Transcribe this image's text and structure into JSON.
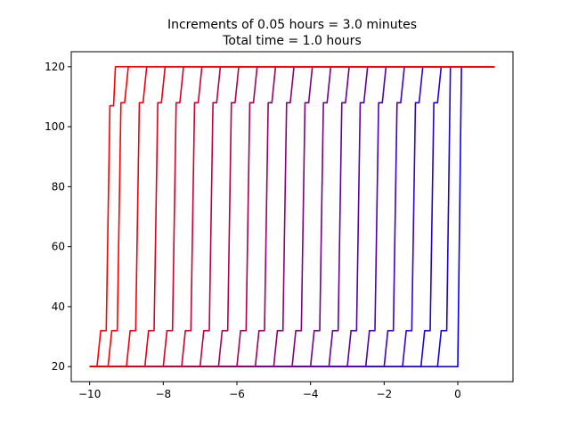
{
  "chart_data": {
    "type": "line",
    "title_lines": [
      "Increments of 0.05 hours = 3.0 minutes",
      "Total time = 1.0 hours"
    ],
    "xlabel": "",
    "ylabel": "",
    "xlim": [
      -10.5,
      1.5
    ],
    "ylim": [
      15,
      125
    ],
    "xticks": [
      {
        "value": -10,
        "label": "−10"
      },
      {
        "value": -8,
        "label": "−8"
      },
      {
        "value": -6,
        "label": "−6"
      },
      {
        "value": -4,
        "label": "−4"
      },
      {
        "value": -2,
        "label": "−2"
      },
      {
        "value": 0,
        "label": "0"
      }
    ],
    "yticks": [
      {
        "value": 20,
        "label": "20"
      },
      {
        "value": 40,
        "label": "40"
      },
      {
        "value": 60,
        "label": "60"
      },
      {
        "value": 80,
        "label": "80"
      },
      {
        "value": 100,
        "label": "100"
      },
      {
        "value": 120,
        "label": "120"
      }
    ],
    "grid": false,
    "colors": {
      "start": "#0000ff",
      "end": "#ff0000"
    },
    "series": [
      {
        "color": "#0d00f2",
        "x": [
          -10.0,
          0.0,
          0.1,
          1.0
        ],
        "y": [
          20,
          20,
          120,
          120
        ]
      },
      {
        "color": "#1a00e5",
        "x": [
          -10.0,
          -0.55,
          -0.45,
          -0.3,
          -0.2,
          0.0,
          1.0
        ],
        "y": [
          20,
          20,
          32,
          32,
          120,
          120,
          120
        ]
      },
      {
        "color": "#2600d9",
        "x": [
          -10.0,
          -1.0,
          -0.9,
          -0.75,
          -0.65,
          -0.55,
          -0.45,
          1.0
        ],
        "y": [
          20,
          20,
          32,
          32,
          108,
          108,
          120,
          120
        ]
      },
      {
        "color": "#3300cc",
        "x": [
          -10.0,
          -1.5,
          -1.4,
          -1.25,
          -1.15,
          -1.05,
          -0.95,
          1.0
        ],
        "y": [
          20,
          20,
          32,
          32,
          108,
          108,
          120,
          120
        ]
      },
      {
        "color": "#4000bf",
        "x": [
          -10.0,
          -2.0,
          -1.9,
          -1.75,
          -1.65,
          -1.55,
          -1.45,
          1.0
        ],
        "y": [
          20,
          20,
          32,
          32,
          108,
          108,
          120,
          120
        ]
      },
      {
        "color": "#4d00b2",
        "x": [
          -10.0,
          -2.5,
          -2.4,
          -2.25,
          -2.15,
          -2.05,
          -1.95,
          1.0
        ],
        "y": [
          20,
          20,
          32,
          32,
          108,
          108,
          120,
          120
        ]
      },
      {
        "color": "#5900a6",
        "x": [
          -10.0,
          -3.0,
          -2.9,
          -2.75,
          -2.65,
          -2.55,
          -2.45,
          1.0
        ],
        "y": [
          20,
          20,
          32,
          32,
          108,
          108,
          120,
          120
        ]
      },
      {
        "color": "#660099",
        "x": [
          -10.0,
          -3.5,
          -3.4,
          -3.25,
          -3.15,
          -3.05,
          -2.95,
          1.0
        ],
        "y": [
          20,
          20,
          32,
          32,
          108,
          108,
          120,
          120
        ]
      },
      {
        "color": "#73008c",
        "x": [
          -10.0,
          -4.0,
          -3.9,
          -3.75,
          -3.65,
          -3.55,
          -3.45,
          1.0
        ],
        "y": [
          20,
          20,
          32,
          32,
          108,
          108,
          120,
          120
        ]
      },
      {
        "color": "#800080",
        "x": [
          -10.0,
          -4.5,
          -4.4,
          -4.25,
          -4.15,
          -4.05,
          -3.95,
          1.0
        ],
        "y": [
          20,
          20,
          32,
          32,
          108,
          108,
          120,
          120
        ]
      },
      {
        "color": "#8c0073",
        "x": [
          -10.0,
          -5.0,
          -4.9,
          -4.75,
          -4.65,
          -4.55,
          -4.45,
          1.0
        ],
        "y": [
          20,
          20,
          32,
          32,
          108,
          108,
          120,
          120
        ]
      },
      {
        "color": "#990066",
        "x": [
          -10.0,
          -5.5,
          -5.4,
          -5.25,
          -5.15,
          -5.05,
          -4.95,
          1.0
        ],
        "y": [
          20,
          20,
          32,
          32,
          108,
          108,
          120,
          120
        ]
      },
      {
        "color": "#a60059",
        "x": [
          -10.0,
          -6.0,
          -5.9,
          -5.75,
          -5.65,
          -5.55,
          -5.45,
          1.0
        ],
        "y": [
          20,
          20,
          32,
          32,
          108,
          108,
          120,
          120
        ]
      },
      {
        "color": "#b2004d",
        "x": [
          -10.0,
          -6.5,
          -6.4,
          -6.25,
          -6.15,
          -6.05,
          -5.95,
          1.0
        ],
        "y": [
          20,
          20,
          32,
          32,
          108,
          108,
          120,
          120
        ]
      },
      {
        "color": "#bf0040",
        "x": [
          -10.0,
          -7.0,
          -6.9,
          -6.75,
          -6.65,
          -6.55,
          -6.45,
          1.0
        ],
        "y": [
          20,
          20,
          32,
          32,
          108,
          108,
          120,
          120
        ]
      },
      {
        "color": "#cc0033",
        "x": [
          -10.0,
          -7.5,
          -7.4,
          -7.25,
          -7.15,
          -7.05,
          -6.95,
          1.0
        ],
        "y": [
          20,
          20,
          32,
          32,
          108,
          108,
          120,
          120
        ]
      },
      {
        "color": "#d90026",
        "x": [
          -10.0,
          -8.0,
          -7.9,
          -7.75,
          -7.65,
          -7.55,
          -7.45,
          1.0
        ],
        "y": [
          20,
          20,
          32,
          32,
          108,
          108,
          120,
          120
        ]
      },
      {
        "color": "#e5001a",
        "x": [
          -10.0,
          -8.5,
          -8.4,
          -8.25,
          -8.15,
          -8.05,
          -7.95,
          1.0
        ],
        "y": [
          20,
          20,
          32,
          32,
          108,
          108,
          120,
          120
        ]
      },
      {
        "color": "#f2000d",
        "x": [
          -10.0,
          -9.0,
          -8.9,
          -8.75,
          -8.65,
          -8.55,
          -8.45,
          1.0
        ],
        "y": [
          20,
          20,
          32,
          32,
          108,
          108,
          120,
          120
        ]
      },
      {
        "color": "#ff0000",
        "x": [
          -10.0,
          -9.5,
          -9.4,
          -9.25,
          -9.15,
          -9.05,
          -8.95,
          1.0
        ],
        "y": [
          20,
          20,
          32,
          32,
          108,
          108,
          120,
          120
        ]
      },
      {
        "color": "#ff0000",
        "x": [
          -10.0,
          -9.8,
          -9.7,
          -9.55,
          -9.45,
          -9.35,
          -9.3,
          1.0
        ],
        "y": [
          20,
          20,
          32,
          32,
          107,
          107,
          120,
          120
        ]
      }
    ]
  }
}
